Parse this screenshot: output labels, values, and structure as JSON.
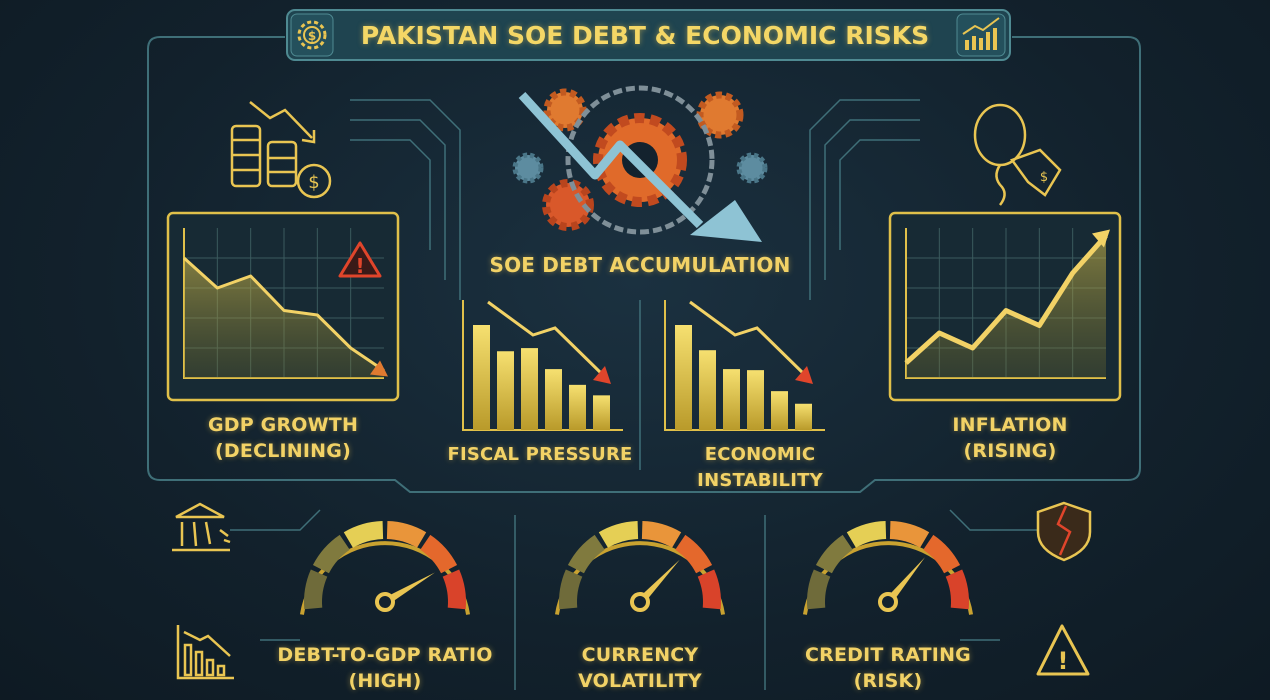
{
  "title": "PAKISTAN SOE DEBT & ECONOMIC RISKS",
  "colors": {
    "background": "#13222e",
    "accent": "#f2d266",
    "frame": "#3f6f78",
    "gold": "#c9a230",
    "warning": "#e0452b",
    "arrow": "#7fb6c8"
  },
  "header_icons": {
    "left": "dollar-gear-icon",
    "right": "rising-bar-chart-icon"
  },
  "center": {
    "label": "SOE DEBT ACCUMULATION",
    "icon": "chained-gears-falling-arrow-icon"
  },
  "panels": [
    {
      "line1": "GDP GROWTH",
      "line2": "(DECLINING)",
      "trend": "declining",
      "values": [
        80,
        60,
        68,
        45,
        42,
        20,
        5
      ],
      "icon": "coins-down-arrow-icon",
      "badge": "warning-icon"
    },
    {
      "line1": "INFLATION",
      "line2": "(RISING)",
      "trend": "rising",
      "values": [
        10,
        30,
        20,
        45,
        35,
        70,
        95
      ],
      "icon": "balloon-price-tag-icon"
    }
  ],
  "bar_charts": [
    {
      "label": "FISCAL PRESSURE",
      "values": [
        100,
        75,
        78,
        58,
        43,
        33
      ]
    },
    {
      "label": "ECONOMIC INSTABILITY",
      "values": [
        100,
        76,
        58,
        57,
        37,
        25
      ]
    }
  ],
  "gauges": [
    {
      "line1": "DEBT-TO-GDP RATIO",
      "line2": "(HIGH)",
      "level": 0.83
    },
    {
      "line1": "CURRENCY",
      "line2": "VOLATILITY",
      "level": 0.74
    },
    {
      "line1": "CREDIT RATING",
      "line2": "(RISK)",
      "level": 0.72
    }
  ],
  "side_icons": [
    "bank-collapse-icon",
    "declining-chart-icon",
    "broken-shield-icon",
    "warning-icon"
  ]
}
